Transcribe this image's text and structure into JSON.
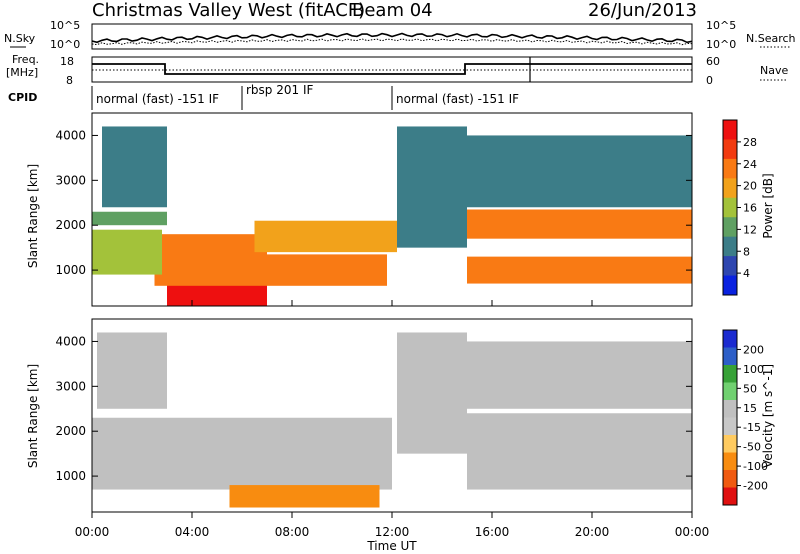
{
  "header": {
    "title": "Christmas Valley West (fitACF)",
    "beam": "Beam 04",
    "date": "26/Jun/2013"
  },
  "panels": {
    "nsky": {
      "left_label": "N.Sky",
      "right_label": "N.Search",
      "ticks_left": [
        "10^5",
        "10^0"
      ],
      "ticks_right": [
        "10^5",
        "10^0"
      ]
    },
    "freq": {
      "left_label_1": "Freq.",
      "left_label_2": "[MHz]",
      "right_label": "Nave",
      "ticks_left": [
        "18",
        "8"
      ],
      "ticks_right": [
        "60",
        "0"
      ]
    },
    "cpid": {
      "label": "CPID",
      "segments": [
        {
          "label": "normal (fast) -151 IF"
        },
        {
          "label": "rbsp 201 IF"
        },
        {
          "label": "normal (fast) -151 IF"
        }
      ]
    }
  },
  "colors": {
    "power_scale": [
      "#0a22e0",
      "#2e46b0",
      "#3c7d88",
      "#5fa062",
      "#a3c23a",
      "#f2a21b",
      "#f97a14",
      "#f23b10",
      "#ee1010"
    ],
    "velocity_scale": [
      "#1b2bd0",
      "#2d5fc8",
      "#37a237",
      "#70d070",
      "#c0c0c0",
      "#c8c8c8",
      "#ffcb60",
      "#f88c10",
      "#f05a10",
      "#e01010"
    ]
  },
  "chart_data": [
    {
      "type": "heatmap",
      "name": "power",
      "ylabel": "Slant Range [km]",
      "yticks": [
        "1000",
        "2000",
        "3000",
        "4000"
      ],
      "ylim": [
        200,
        4500
      ],
      "colorbar_label": "Power [dB]",
      "colorbar_ticks": [
        "28",
        "24",
        "20",
        "16",
        "12",
        "8",
        "4"
      ],
      "regions": [
        {
          "t0": 3.0,
          "t1": 7.0,
          "r0": 200,
          "r1": 900,
          "power": 30
        },
        {
          "t0": 2.5,
          "t1": 11.8,
          "r0": 650,
          "r1": 1350,
          "power": 24
        },
        {
          "t0": 2.8,
          "t1": 7.0,
          "r0": 1300,
          "r1": 1800,
          "power": 22
        },
        {
          "t0": 6.5,
          "t1": 12.2,
          "r0": 1400,
          "r1": 2100,
          "power": 18
        },
        {
          "t0": 0.0,
          "t1": 2.8,
          "r0": 900,
          "r1": 1900,
          "power": 16
        },
        {
          "t0": 0.0,
          "t1": 3.0,
          "r0": 2000,
          "r1": 2300,
          "power": 12
        },
        {
          "t0": 0.4,
          "t1": 3.0,
          "r0": 2400,
          "r1": 4200,
          "power": 10
        },
        {
          "t0": 12.2,
          "t1": 15.0,
          "r0": 1500,
          "r1": 4200,
          "power": 8
        },
        {
          "t0": 15.0,
          "t1": 24.0,
          "r0": 1700,
          "r1": 2350,
          "power": 24
        },
        {
          "t0": 15.0,
          "t1": 24.0,
          "r0": 700,
          "r1": 1300,
          "power": 22
        },
        {
          "t0": 15.0,
          "t1": 24.0,
          "r0": 2400,
          "r1": 4000,
          "power": 10
        }
      ]
    },
    {
      "type": "heatmap",
      "name": "velocity",
      "ylabel": "Slant Range [km]",
      "xlabel": "Time UT",
      "xticks": [
        "00:00",
        "04:00",
        "08:00",
        "12:00",
        "16:00",
        "20:00",
        "00:00"
      ],
      "xlim": [
        0,
        24
      ],
      "yticks": [
        "1000",
        "2000",
        "3000",
        "4000"
      ],
      "ylim": [
        200,
        4500
      ],
      "colorbar_label": "Velocity [m s^-1]",
      "colorbar_ticks": [
        "200",
        "100",
        "50",
        "15",
        "-15",
        "-50",
        "-100",
        "-200"
      ],
      "regions": [
        {
          "t0": 0.0,
          "t1": 12.0,
          "r0": 700,
          "r1": 2300,
          "velocity": 0
        },
        {
          "t0": 5.5,
          "t1": 11.5,
          "r0": 300,
          "r1": 800,
          "velocity": -60
        },
        {
          "t0": 0.2,
          "t1": 3.0,
          "r0": 2500,
          "r1": 4200,
          "velocity": 0
        },
        {
          "t0": 12.2,
          "t1": 15.0,
          "r0": 1500,
          "r1": 4200,
          "velocity": 0
        },
        {
          "t0": 15.0,
          "t1": 24.0,
          "r0": 700,
          "r1": 2400,
          "velocity": 0
        },
        {
          "t0": 15.0,
          "t1": 24.0,
          "r0": 2500,
          "r1": 4000,
          "velocity": 0
        }
      ]
    }
  ]
}
